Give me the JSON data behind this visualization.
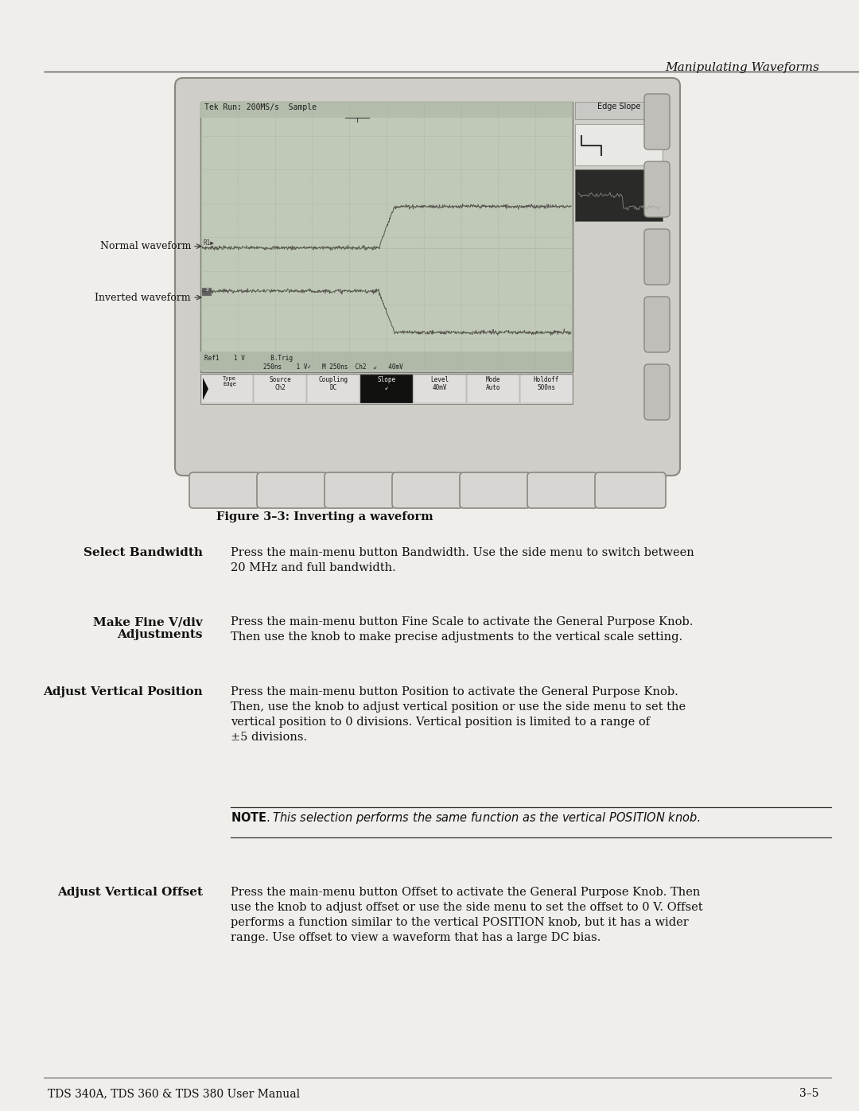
{
  "page_bg": "#f0eeea",
  "header_text": "Manipulating Waveforms",
  "figure_caption": "Figure 3–3: Inverting a waveform",
  "section1_title": "Select Bandwidth",
  "section1_body": "Press the main-menu button Bandwidth. Use the side menu to switch between\n20 MHz and full bandwidth.",
  "section2_title": "Make Fine V/div\nAdjustments",
  "section2_body": "Press the main-menu button Fine Scale to activate the General Purpose Knob.\nThen use the knob to make precise adjustments to the vertical scale setting.",
  "section3_title": "Adjust Vertical Position",
  "section3_body": "Press the main-menu button Position to activate the General Purpose Knob.\nThen, use the knob to adjust vertical position or use the side menu to set the\nvertical position to 0 divisions. Vertical position is limited to a range of\n±5 divisions.",
  "note_text_bold": "NOTE",
  "note_text_italic": ". This selection performs the same function as the vertical POSITION knob.",
  "section4_title": "Adjust Vertical Offset",
  "section4_body": "Press the main-menu button Offset to activate the General Purpose Knob. Then\nuse the knob to adjust offset or use the side menu to set the offset to 0 V. Offset\nperforms a function similar to the vertical POSITION knob, but it has a wider\nrange. Use offset to view a waveform that has a large DC bias.",
  "footer_left": "TDS 340A, TDS 360 & TDS 380 User Manual",
  "footer_right": "3–5",
  "scope_header": "Tek Run: 200MS/s  Sample",
  "scope_status": "Ref1    1 V       B.Trig\n                  250ns       1 V✓   M 250ns  Ch2  ↙   40mV",
  "scope_menu": [
    "Type\nEdge",
    "Source\nCh2",
    "Coupling\nDC",
    "Slope\n↙",
    "Level\n40mV",
    "Mode\nAuto",
    "Holdoff\n500ns"
  ],
  "scope_sidemenu_title": "Edge Slope",
  "normal_waveform_label": "Normal waveform",
  "inverted_waveform_label": "Inverted waveform",
  "scope_body_color": "#c8c8c4",
  "scope_screen_color": "#c0c8b8",
  "scope_grid_color": "#a8b4a0",
  "scope_wave1_color": "#505048",
  "scope_wave2_color": "#505048"
}
